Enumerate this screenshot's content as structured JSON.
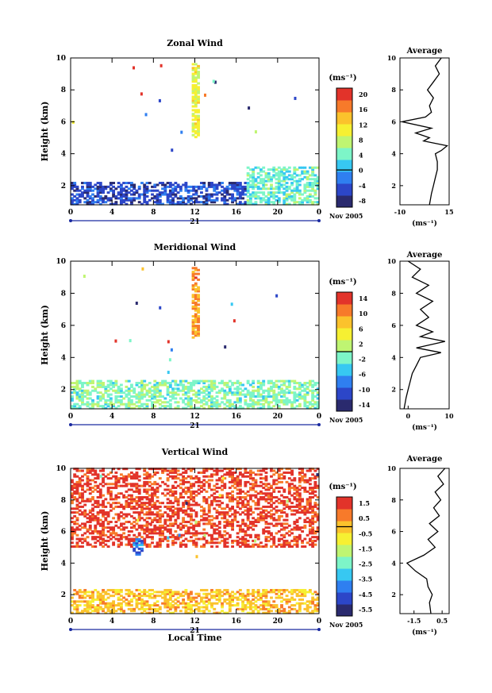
{
  "panels": [
    {
      "id": "zonal",
      "title": "Zonal Wind",
      "ylabel": "Height (km)",
      "xticks": [
        "0",
        "4",
        "8",
        "12",
        "16",
        "20",
        "0"
      ],
      "yticks": [
        "2",
        "4",
        "6",
        "8",
        "10"
      ],
      "day_label": "21",
      "date_label": "Nov 2005",
      "colorbar": {
        "unit": "(ms⁻¹)",
        "labels": [
          "20",
          "16",
          "12",
          "8",
          "4",
          "0",
          "-4",
          "-8"
        ]
      },
      "avg": {
        "title": "Average",
        "xticks": [
          "-10",
          "15"
        ],
        "xunit": "(ms⁻¹)",
        "yticks": [
          "2",
          "4",
          "6",
          "8",
          "10"
        ]
      }
    },
    {
      "id": "meridional",
      "title": "Meridional Wind",
      "ylabel": "Height (km)",
      "xticks": [
        "0",
        "4",
        "8",
        "12",
        "16",
        "20",
        "0"
      ],
      "yticks": [
        "2",
        "4",
        "6",
        "8",
        "10"
      ],
      "day_label": "21",
      "date_label": "Nov 2005",
      "colorbar": {
        "unit": "(ms⁻¹)",
        "labels": [
          "14",
          "10",
          "6",
          "2",
          "-2",
          "-6",
          "-10",
          "-14"
        ]
      },
      "avg": {
        "title": "Average",
        "xticks": [
          "0",
          "10"
        ],
        "xunit": "(ms⁻¹)",
        "yticks": [
          "2",
          "4",
          "6",
          "8",
          "10"
        ]
      }
    },
    {
      "id": "vertical",
      "title": "Vertical Wind",
      "ylabel": "Height (km)",
      "xticks": [
        "0",
        "4",
        "8",
        "12",
        "16",
        "20",
        "0"
      ],
      "yticks": [
        "2",
        "4",
        "6",
        "8",
        "10"
      ],
      "day_label": "21",
      "date_label": "Nov 2005",
      "xlabel": "Local Time",
      "colorbar": {
        "unit": "(ms⁻¹)",
        "labels": [
          "1.5",
          "0.5",
          "-0.5",
          "-1.5",
          "-2.5",
          "-3.5",
          "-4.5",
          "-5.5"
        ]
      },
      "avg": {
        "title": "Average",
        "xticks": [
          "-1.5",
          "0.5"
        ],
        "xunit": "(ms⁻¹)",
        "yticks": [
          "2",
          "4",
          "6",
          "8",
          "10"
        ]
      }
    }
  ],
  "chart_data": [
    {
      "type": "heatmap",
      "title": "Zonal Wind",
      "xlabel": "",
      "ylabel": "Height (km)",
      "xlim": [
        0,
        24
      ],
      "ylim": [
        0.8,
        10
      ],
      "colorbar_range": [
        -10,
        22
      ],
      "regions": [
        {
          "x": [
            0,
            17
          ],
          "y": [
            0.8,
            2.2
          ],
          "value": -5
        },
        {
          "x": [
            17,
            24
          ],
          "y": [
            0.8,
            3.2
          ],
          "value": 4
        },
        {
          "x": [
            11.7,
            12.4
          ],
          "y": [
            5,
            9.6
          ],
          "value": 10
        }
      ],
      "average_profile": {
        "xlim": [
          -10,
          15
        ],
        "height": [
          0.8,
          1.5,
          2.0,
          2.5,
          3.0,
          3.5,
          4.0,
          4.2,
          4.5,
          4.8,
          5.0,
          5.3,
          5.6,
          6.0,
          6.3,
          6.6,
          7.0,
          7.5,
          8.0,
          8.5,
          9.0,
          9.5,
          10.0
        ],
        "value": [
          5,
          6,
          7,
          8,
          9,
          9,
          8,
          11,
          14,
          2,
          5,
          -2,
          6,
          -9,
          3,
          6,
          5,
          7,
          4,
          7,
          10,
          8,
          11
        ]
      }
    },
    {
      "type": "heatmap",
      "title": "Meridional Wind",
      "xlabel": "",
      "ylabel": "Height (km)",
      "xlim": [
        0,
        24
      ],
      "ylim": [
        0.8,
        10
      ],
      "colorbar_range": [
        -16,
        16
      ],
      "regions": [
        {
          "x": [
            0,
            24
          ],
          "y": [
            0.8,
            2.5
          ],
          "value": -1
        },
        {
          "x": [
            11.7,
            12.4
          ],
          "y": [
            5.2,
            9.6
          ],
          "value": 10
        }
      ],
      "average_profile": {
        "xlim": [
          -2,
          10
        ],
        "height": [
          0.8,
          1.5,
          2.0,
          2.5,
          3.0,
          3.5,
          4.0,
          4.3,
          4.6,
          5.0,
          5.3,
          5.6,
          6.0,
          6.5,
          7.0,
          7.5,
          8.0,
          8.5,
          9.0,
          9.5,
          10.0
        ],
        "value": [
          -1,
          -0.5,
          0,
          0.5,
          1,
          2,
          3,
          8,
          2,
          9,
          3,
          6,
          2,
          5,
          3,
          6,
          2,
          5,
          1,
          3,
          0
        ]
      }
    },
    {
      "type": "heatmap",
      "title": "Vertical Wind",
      "xlabel": "Local Time",
      "ylabel": "Height (km)",
      "xlim": [
        0,
        24
      ],
      "ylim": [
        0.8,
        10
      ],
      "colorbar_range": [
        -6,
        2
      ],
      "regions": [
        {
          "x": [
            0,
            24
          ],
          "y": [
            0.8,
            2.3
          ],
          "value": 0
        },
        {
          "x": [
            0,
            24
          ],
          "y": [
            5.0,
            10
          ],
          "value": 1.5
        },
        {
          "x": [
            6,
            7
          ],
          "y": [
            4.5,
            5.5
          ],
          "value": -4
        }
      ],
      "average_profile": {
        "xlim": [
          -2.5,
          1.0
        ],
        "height": [
          0.8,
          1.5,
          2.0,
          2.5,
          3.0,
          3.5,
          4.0,
          4.5,
          5.0,
          5.5,
          6.0,
          6.5,
          7.0,
          7.5,
          8.0,
          8.5,
          9.0,
          9.5,
          10.0
        ],
        "value": [
          -0.3,
          -0.4,
          -0.2,
          -0.5,
          -0.6,
          -1.4,
          -2.0,
          -0.8,
          0.0,
          -0.5,
          0.2,
          -0.4,
          0.3,
          -0.1,
          0.4,
          0.0,
          0.6,
          0.2,
          0.7
        ]
      }
    }
  ],
  "colors": {
    "palette": [
      "#2a2a6e",
      "#2c46c8",
      "#2f7ff0",
      "#37c8f2",
      "#7df5c8",
      "#bff572",
      "#f6f032",
      "#fbc22c",
      "#f77a2a",
      "#e2332a"
    ],
    "axis": "#000000",
    "timebar": "#1a2aa0"
  }
}
